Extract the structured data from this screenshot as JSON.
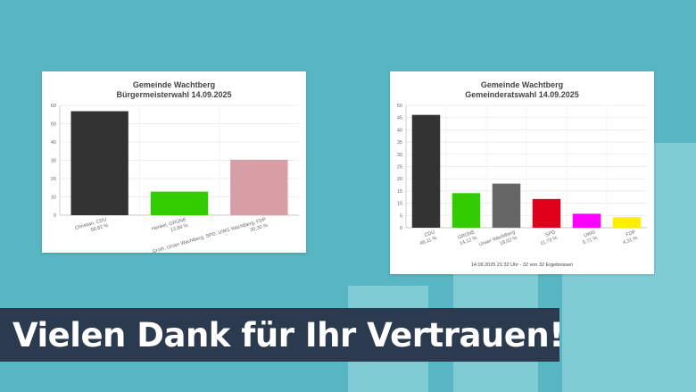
{
  "banner": {
    "text": "Vielen Dank für Ihr Vertrauen!"
  },
  "chart_data": [
    {
      "type": "bar",
      "title": "Gemeinde Wachtberg",
      "subtitle": "Bürgermeisterwahl 14.09.2025",
      "ylim": [
        0,
        60
      ],
      "yticks": [
        0,
        10,
        20,
        30,
        40,
        50,
        60
      ],
      "categories": [
        "Christian, CDU",
        "Henkel, GRÜNE",
        "Groth, Unser Wachtberg, SPD, UWG Wachtberg, FDP"
      ],
      "value_labels": [
        "56,82 %",
        "12,89 %",
        "30,30 %"
      ],
      "values": [
        56.82,
        12.89,
        30.3
      ],
      "colors": [
        "#333333",
        "#33cc00",
        "#d89ea6"
      ],
      "grid": true
    },
    {
      "type": "bar",
      "title": "Gemeinde Wachtberg",
      "subtitle": "Gemeinderatswahl 14.09.2025",
      "ylim": [
        0,
        50
      ],
      "yticks": [
        0,
        5,
        10,
        15,
        20,
        25,
        30,
        35,
        40,
        45,
        50
      ],
      "categories": [
        "CDU",
        "GRÜNE",
        "Unser Wachtberg",
        "SPD",
        "UWG",
        "FDP"
      ],
      "value_labels": [
        "46,11 %",
        "14,12 %",
        "18,02 %",
        "11,73 %",
        "5,71 %",
        "4,31 %"
      ],
      "values": [
        46.11,
        14.12,
        18.02,
        11.73,
        5.71,
        4.31
      ],
      "colors": [
        "#333333",
        "#33cc00",
        "#666666",
        "#e0001b",
        "#ff00ff",
        "#ffee00"
      ],
      "grid": true,
      "footer": "14.09.2025 21:32 Uhr - 32 von 32 Ergebnissen"
    }
  ]
}
